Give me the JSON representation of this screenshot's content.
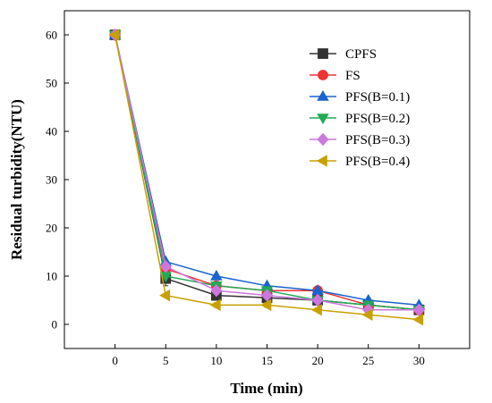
{
  "chart_data": {
    "type": "line",
    "title": "",
    "xlabel": "Time (min)",
    "ylabel": "Residual turbidity(NTU)",
    "x": [
      0,
      5,
      10,
      15,
      20,
      25,
      30
    ],
    "xlim": [
      -5,
      35
    ],
    "ylim": [
      -5,
      65
    ],
    "xticks": [
      0,
      5,
      10,
      15,
      20,
      25,
      30
    ],
    "yticks": [
      0,
      10,
      20,
      30,
      40,
      50,
      60
    ],
    "grid": false,
    "legend_position": "top-right",
    "series": [
      {
        "name": "CPFS",
        "color": "#333333",
        "marker": "square",
        "values": [
          60,
          9.5,
          6,
          5.5,
          5,
          4,
          3
        ],
        "errors": [
          0,
          1.5,
          0.5,
          0.5,
          0.5,
          0.5,
          0.5
        ]
      },
      {
        "name": "FS",
        "color": "#ee3333",
        "marker": "circle",
        "values": [
          60,
          11.5,
          8,
          7,
          7,
          4,
          3
        ],
        "errors": [
          0,
          0,
          0,
          0,
          0,
          0,
          0
        ]
      },
      {
        "name": "PFS(B=0.1)",
        "color": "#1a64cf",
        "marker": "triangle-up",
        "values": [
          60,
          13,
          10,
          8,
          7,
          5,
          4
        ],
        "errors": [
          0,
          0,
          0,
          0,
          0,
          0,
          0
        ]
      },
      {
        "name": "PFS(B=0.2)",
        "color": "#22aa55",
        "marker": "triangle-down",
        "values": [
          60,
          10,
          8,
          7,
          5,
          4,
          3
        ],
        "errors": [
          0,
          0,
          0,
          0,
          0,
          0,
          0
        ]
      },
      {
        "name": "PFS(B=0.3)",
        "color": "#cc77dd",
        "marker": "diamond",
        "values": [
          60,
          12,
          7,
          6,
          5,
          3,
          3
        ],
        "errors": [
          0,
          0,
          0,
          0,
          0,
          0,
          0
        ]
      },
      {
        "name": "PFS(B=0.4)",
        "color": "#c8a000",
        "marker": "triangle-left",
        "values": [
          60,
          6,
          4,
          4,
          3,
          2,
          1
        ],
        "errors": [
          0,
          0,
          0.5,
          0.5,
          0,
          0,
          0
        ]
      }
    ]
  }
}
